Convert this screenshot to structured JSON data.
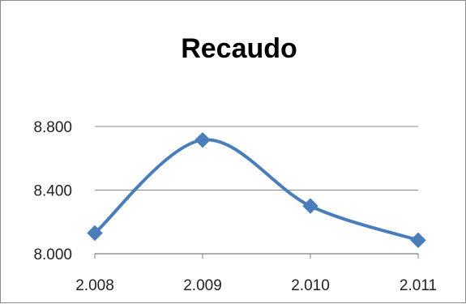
{
  "chart_data": {
    "type": "line",
    "title": "Recaudo",
    "xlabel": "",
    "ylabel": "",
    "categories": [
      "2.008",
      "2.009",
      "2.010",
      "2.011"
    ],
    "series": [
      {
        "values": [
          8130,
          8715,
          8300,
          8085
        ],
        "color": "#4a7ebb",
        "marker": "diamond",
        "smooth": true
      }
    ],
    "ylim": [
      8000,
      8800
    ],
    "yticks": [
      8000,
      8400,
      8800
    ],
    "ytick_labels": [
      "8.000",
      "8.400",
      "8.800"
    ],
    "grid": true,
    "legend": "none"
  }
}
